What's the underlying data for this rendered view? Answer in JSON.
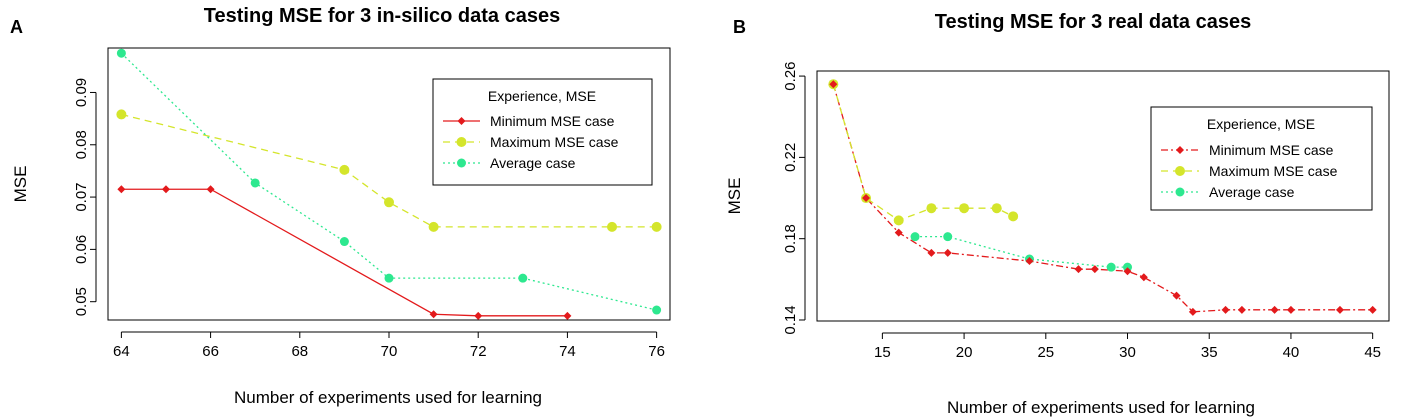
{
  "chart_data": [
    {
      "type": "line",
      "panel": "A",
      "title": "Testing MSE for 3 in-silico data cases",
      "xlabel": "Number of experiments used for learning",
      "ylabel": "MSE",
      "xlim": [
        63.7,
        76.3
      ],
      "ylim": [
        0.0465,
        0.0985
      ],
      "xticks": [
        64,
        66,
        68,
        70,
        72,
        74,
        76
      ],
      "yticks": [
        0.05,
        0.06,
        0.07,
        0.08,
        0.09
      ],
      "yticklabels": [
        "0.05",
        "0.06",
        "0.07",
        "0.08",
        "0.09"
      ],
      "legend": {
        "title": "Experience, MSE",
        "position": "top-right"
      },
      "series": [
        {
          "name": "Minimum MSE case",
          "color": "#e31a1c",
          "style": "solid",
          "marker": "diamond",
          "x": [
            64,
            65,
            66,
            71,
            72,
            74
          ],
          "y": [
            0.0715,
            0.0715,
            0.0715,
            0.0476,
            0.0473,
            0.0473
          ]
        },
        {
          "name": "Maximum MSE case",
          "color": "#d4e52b",
          "style": "dashed",
          "marker": "circle",
          "x": [
            64,
            69,
            70,
            71,
            75,
            76
          ],
          "y": [
            0.0858,
            0.0752,
            0.069,
            0.0643,
            0.0643,
            0.0643
          ]
        },
        {
          "name": "Average case",
          "color": "#2de88f",
          "style": "dotted",
          "marker": "circle",
          "x": [
            64,
            67,
            69,
            70,
            73,
            76
          ],
          "y": [
            0.0975,
            0.0727,
            0.0615,
            0.0545,
            0.0545,
            0.0484
          ]
        }
      ]
    },
    {
      "type": "line",
      "panel": "B",
      "title": "Testing MSE for 3 real data cases",
      "xlabel": "Number of experiments used for learning",
      "ylabel": "MSE",
      "xlim": [
        11.0,
        46.0
      ],
      "ylim": [
        0.1395,
        0.2625
      ],
      "xticks": [
        15,
        20,
        25,
        30,
        35,
        40,
        45
      ],
      "yticks": [
        0.14,
        0.18,
        0.22,
        0.26
      ],
      "yticklabels": [
        "0.14",
        "0.18",
        "0.22",
        "0.26"
      ],
      "legend": {
        "title": "Experience, MSE",
        "position": "right"
      },
      "series": [
        {
          "name": "Minimum MSE case",
          "color": "#e31a1c",
          "style": "dashdot",
          "marker": "diamond",
          "x": [
            12,
            14,
            16,
            18,
            19,
            24,
            27,
            28,
            30,
            31,
            33,
            34,
            36,
            37,
            39,
            40,
            43,
            45
          ],
          "y": [
            0.256,
            0.2,
            0.183,
            0.173,
            0.173,
            0.169,
            0.165,
            0.165,
            0.164,
            0.161,
            0.152,
            0.144,
            0.145,
            0.145,
            0.145,
            0.145,
            0.145,
            0.145
          ]
        },
        {
          "name": "Maximum MSE case",
          "color": "#d4e52b",
          "style": "dashed",
          "marker": "circle",
          "x": [
            12,
            14,
            16,
            18,
            20,
            22,
            23
          ],
          "y": [
            0.256,
            0.2,
            0.189,
            0.195,
            0.195,
            0.195,
            0.191
          ]
        },
        {
          "name": "Average case",
          "color": "#2de88f",
          "style": "dotted",
          "marker": "circle",
          "x": [
            17,
            19,
            24,
            29,
            30
          ],
          "y": [
            0.181,
            0.181,
            0.17,
            0.166,
            0.166
          ]
        }
      ]
    }
  ]
}
